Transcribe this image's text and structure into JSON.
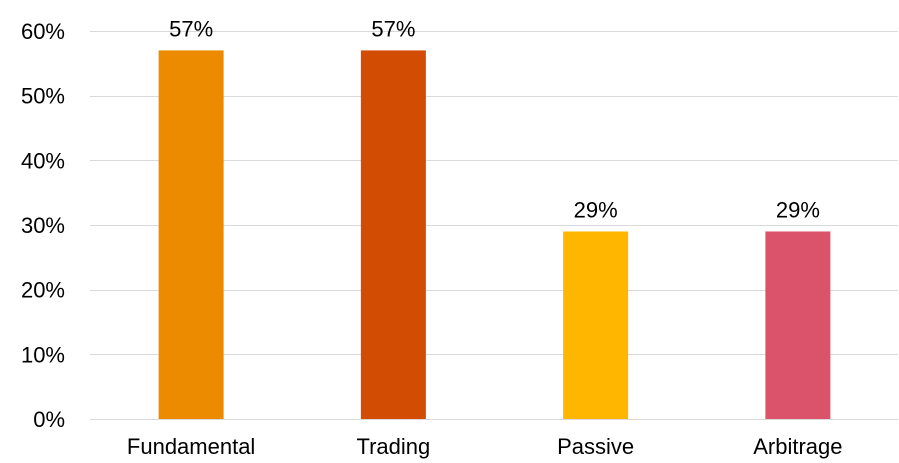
{
  "chart_data": {
    "type": "bar",
    "title": "",
    "xlabel": "",
    "ylabel": "",
    "categories": [
      "Fundamental",
      "Trading",
      "Passive",
      "Arbitrage"
    ],
    "values": [
      0.57,
      0.57,
      0.29,
      0.29
    ],
    "data_labels": [
      "57%",
      "57%",
      "29%",
      "29%"
    ],
    "ylim": [
      0,
      0.6
    ],
    "y_ticks": [
      0,
      0.1,
      0.2,
      0.3,
      0.4,
      0.5,
      0.6
    ],
    "y_tick_labels": [
      "0%",
      "10%",
      "20%",
      "30%",
      "40%",
      "50%",
      "60%"
    ],
    "grid": true,
    "legend": "none",
    "colors": [
      "#ED8B00",
      "#D24D03",
      "#FFB600",
      "#DB536A"
    ]
  }
}
